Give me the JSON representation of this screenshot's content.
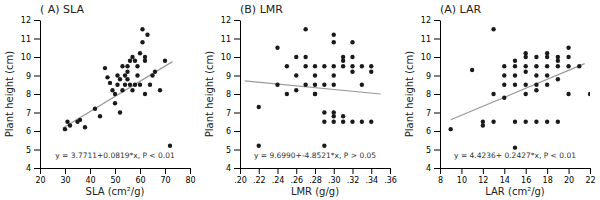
{
  "chart_data": [
    {
      "type": "scatter",
      "title": "( A) SLA",
      "x_label": "SLA (cm²/g)",
      "y_label": "Plant height (cm)",
      "annotations": [
        "y = 3.7711+0.0819*x, P < 0.01"
      ],
      "xlim": [
        20,
        80
      ],
      "ylim": [
        4,
        12
      ],
      "xticks": [
        20,
        30,
        40,
        50,
        60,
        70,
        80
      ],
      "yticks": [
        4,
        5,
        6,
        7,
        8,
        9,
        10,
        11,
        12
      ],
      "grid": false,
      "series": [
        {
          "type": "scatter",
          "color": "#1a1a1a",
          "x": [
            30,
            31,
            32,
            35,
            36,
            38,
            42,
            44,
            46,
            47,
            48,
            49,
            50,
            50,
            51,
            51,
            52,
            52,
            53,
            53,
            54,
            54,
            55,
            55,
            55,
            56,
            56,
            57,
            57,
            58,
            58,
            59,
            59,
            60,
            60,
            61,
            61,
            62,
            62,
            63,
            64,
            65,
            66,
            68,
            70,
            72,
            62
          ],
          "values": [
            6.1,
            6.5,
            6.3,
            6.5,
            6.6,
            6.2,
            7.2,
            6.8,
            9.4,
            8.9,
            8.6,
            8.2,
            7.5,
            8.0,
            8.5,
            9.0,
            7.0,
            8.8,
            8.2,
            9.5,
            8.5,
            9.0,
            9.5,
            8.8,
            9.2,
            9.8,
            8.5,
            8.2,
            10.0,
            9.8,
            8.5,
            9.5,
            9.0,
            10.2,
            8.5,
            10.8,
            11.5,
            9.8,
            8.0,
            11.2,
            8.5,
            9.0,
            9.2,
            8.2,
            9.8,
            5.2,
            10.0
          ]
        },
        {
          "type": "line",
          "color": "#999999",
          "x": [
            29,
            73
          ],
          "values": [
            6.1462,
            9.7498
          ]
        }
      ]
    },
    {
      "type": "scatter",
      "title": "(B) LMR",
      "x_label": "LMR (g/g)",
      "y_label": "Plant height (cm)",
      "annotations": [
        "y = 9.6990+-4.8521*x, P > 0.05"
      ],
      "xlim": [
        0.2,
        0.36
      ],
      "ylim": [
        4,
        12
      ],
      "xticks": [
        {
          "value": 0.2,
          "label": ".20"
        },
        {
          "value": 0.22,
          "label": ".22"
        },
        {
          "value": 0.24,
          "label": ".24"
        },
        {
          "value": 0.26,
          "label": ".26"
        },
        {
          "value": 0.28,
          "label": ".28"
        },
        {
          "value": 0.3,
          "label": ".30"
        },
        {
          "value": 0.32,
          "label": ".32"
        },
        {
          "value": 0.34,
          "label": ".34"
        },
        {
          "value": 0.36,
          "label": ".36"
        }
      ],
      "yticks": [
        4,
        5,
        6,
        7,
        8,
        9,
        10,
        11,
        12
      ],
      "grid": false,
      "series": [
        {
          "type": "scatter",
          "color": "#1a1a1a",
          "x": [
            0.22,
            0.24,
            0.25,
            0.25,
            0.26,
            0.26,
            0.26,
            0.27,
            0.27,
            0.27,
            0.28,
            0.28,
            0.28,
            0.28,
            0.29,
            0.29,
            0.29,
            0.29,
            0.3,
            0.3,
            0.3,
            0.3,
            0.3,
            0.31,
            0.31,
            0.31,
            0.31,
            0.32,
            0.32,
            0.32,
            0.32,
            0.33,
            0.33,
            0.33,
            0.34,
            0.34,
            0.34,
            0.24,
            0.27,
            0.3,
            0.28,
            0.29,
            0.3,
            0.31,
            0.32,
            0.22,
            0.3
          ],
          "values": [
            5.2,
            8.5,
            8.0,
            9.5,
            8.2,
            9.0,
            10.0,
            8.5,
            9.5,
            10.0,
            8.0,
            8.5,
            9.0,
            9.5,
            6.5,
            7.0,
            8.5,
            9.5,
            6.5,
            6.8,
            7.0,
            9.0,
            9.5,
            6.5,
            6.8,
            9.5,
            10.0,
            6.5,
            9.5,
            10.0,
            9.2,
            6.5,
            8.5,
            9.5,
            6.5,
            9.5,
            9.2,
            10.5,
            11.5,
            11.2,
            8.0,
            5.2,
            8.5,
            9.8,
            10.8,
            7.3,
            10.8
          ]
        },
        {
          "type": "line",
          "color": "#999999",
          "x": [
            0.205,
            0.35
          ],
          "values": [
            8.7043195,
            8.000765
          ]
        }
      ]
    },
    {
      "type": "scatter",
      "title": "(A) LAR",
      "x_label": "LAR (cm²/g)",
      "y_label": "Plant height (cm)",
      "annotations": [
        "y = 4.4236+ 0.2427*x, P < 0.01"
      ],
      "xlim": [
        8,
        22
      ],
      "ylim": [
        4,
        12
      ],
      "xticks": [
        8,
        10,
        12,
        14,
        16,
        18,
        20,
        22
      ],
      "yticks": [
        4,
        5,
        6,
        7,
        8,
        9,
        10,
        11,
        12
      ],
      "grid": false,
      "series": [
        {
          "type": "scatter",
          "color": "#1a1a1a",
          "x": [
            9,
            11,
            12,
            12,
            13,
            13,
            14,
            14,
            14,
            14,
            15,
            15,
            15,
            15,
            15,
            16,
            16,
            16,
            16,
            16,
            16,
            17,
            17,
            17,
            17,
            17,
            18,
            18,
            18,
            18,
            18,
            19,
            19,
            19,
            19,
            20,
            20,
            20,
            21,
            13,
            15,
            16,
            17,
            18,
            19,
            20,
            22
          ],
          "values": [
            6.1,
            9.3,
            6.5,
            6.3,
            6.5,
            8.0,
            7.8,
            8.5,
            9.0,
            9.5,
            6.5,
            8.5,
            9.0,
            9.5,
            9.8,
            8.0,
            8.5,
            9.2,
            9.5,
            10.0,
            10.2,
            8.2,
            8.5,
            9.0,
            9.5,
            10.0,
            8.5,
            9.0,
            9.5,
            10.0,
            10.2,
            8.8,
            9.5,
            10.0,
            9.8,
            9.5,
            10.0,
            10.5,
            9.5,
            11.5,
            5.1,
            6.5,
            6.5,
            6.5,
            6.5,
            8.0,
            8.0
          ]
        },
        {
          "type": "line",
          "color": "#999999",
          "x": [
            9.0,
            21.5
          ],
          "values": [
            6.6079,
            9.64165
          ]
        }
      ]
    }
  ]
}
